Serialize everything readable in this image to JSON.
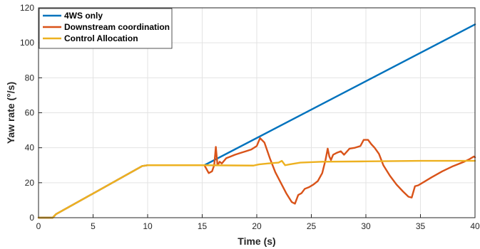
{
  "chart_data": {
    "type": "line",
    "title": "",
    "xlabel": "Time (s)",
    "ylabel": "Yaw rate (°/s)",
    "xlim": [
      0,
      40
    ],
    "ylim": [
      0,
      120
    ],
    "xticks": [
      0,
      5,
      10,
      15,
      20,
      25,
      30,
      35,
      40
    ],
    "yticks": [
      0,
      20,
      40,
      60,
      80,
      100,
      120
    ],
    "grid": true,
    "legend_position": "top-left",
    "series": [
      {
        "name": "4WS only",
        "color": "#0072BD",
        "x": [
          0,
          1.3,
          1.6,
          9.5,
          10,
          15.2,
          40
        ],
        "y": [
          0,
          0,
          2,
          29.5,
          30,
          30,
          110.5
        ]
      },
      {
        "name": "Downstream coordination",
        "color": "#D95319",
        "x": [
          0,
          1.3,
          1.6,
          9.5,
          10,
          15.2,
          15.6,
          15.9,
          16.1,
          16.25,
          16.4,
          16.6,
          16.8,
          17.2,
          17.6,
          18,
          18.5,
          19,
          19.5,
          20,
          20.3,
          20.7,
          21.2,
          21.7,
          22.2,
          22.7,
          23.2,
          23.5,
          23.8,
          24.1,
          24.4,
          24.8,
          25.2,
          25.6,
          26,
          26.3,
          26.5,
          26.65,
          26.8,
          27,
          27.3,
          27.7,
          28,
          28.5,
          29,
          29.5,
          29.8,
          30.2,
          30.5,
          30.8,
          31.2,
          31.6,
          32.2,
          32.8,
          33.4,
          33.9,
          34.2,
          34.5,
          34.8,
          35.2,
          36,
          37,
          38,
          39,
          39.5,
          39.9,
          40
        ],
        "y": [
          0,
          0,
          2,
          29.5,
          30,
          30,
          25.5,
          26.5,
          30,
          40.5,
          30,
          32,
          31,
          34,
          35,
          36,
          37,
          38,
          39,
          41,
          45.5,
          43,
          34,
          26,
          20,
          14,
          9,
          8,
          13,
          14,
          16.5,
          17.5,
          19,
          21,
          25.5,
          33,
          39.5,
          35,
          33,
          36,
          37,
          38,
          36,
          39.5,
          40,
          41,
          44.5,
          44.5,
          42,
          40,
          36.5,
          30,
          24,
          19,
          15,
          12,
          11.5,
          18,
          18.5,
          20,
          23,
          26.5,
          29.5,
          32,
          33.5,
          35,
          34.5
        ]
      },
      {
        "name": "Control Allocation",
        "color": "#EDB120",
        "x": [
          0,
          1.3,
          1.6,
          9.5,
          10,
          15,
          19.7,
          20.2,
          21,
          22,
          22.3,
          22.6,
          23,
          24,
          26,
          30,
          35,
          40
        ],
        "y": [
          0,
          0,
          2,
          29.5,
          30,
          30,
          29.8,
          30.5,
          31,
          31.5,
          32.5,
          30,
          30.5,
          31.5,
          32,
          32.2,
          32.5,
          32.5
        ]
      }
    ]
  }
}
